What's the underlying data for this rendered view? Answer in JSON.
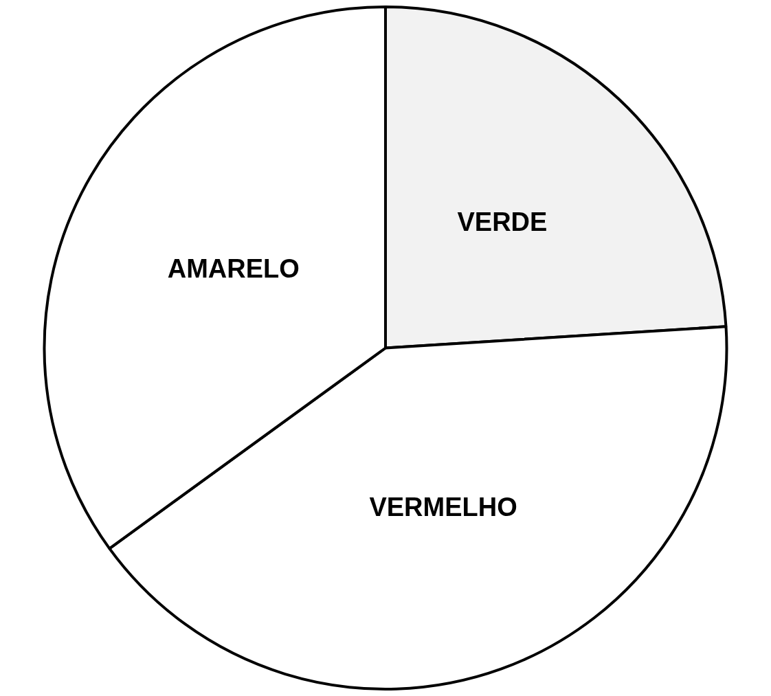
{
  "chart_data": {
    "type": "pie",
    "categories": [
      "VERDE",
      "VERMELHO",
      "AMARELO"
    ],
    "values": [
      24,
      41,
      35
    ],
    "colors": [
      "#f2f2f2",
      "#ffffff",
      "#ffffff"
    ]
  }
}
